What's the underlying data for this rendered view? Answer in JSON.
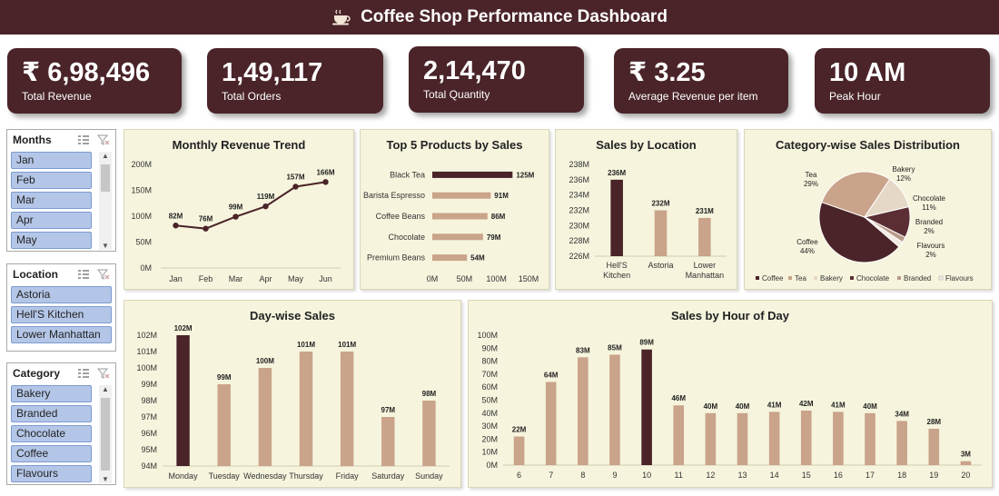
{
  "header": {
    "title": "Coffee Shop Performance Dashboard",
    "icon": "coffee-cup-icon"
  },
  "kpis": [
    {
      "value": "₹ 6,98,496",
      "label": "Total Revenue"
    },
    {
      "value": "1,49,117",
      "label": "Total Orders"
    },
    {
      "value": "2,14,470",
      "label": "Total Quantity"
    },
    {
      "value": "₹ 3.25",
      "label": "Average Revenue per item"
    },
    {
      "value": "10 AM",
      "label": "Peak Hour"
    }
  ],
  "slicers": {
    "months": {
      "title": "Months",
      "items": [
        "Jan",
        "Feb",
        "Mar",
        "Apr",
        "May"
      ]
    },
    "location": {
      "title": "Location",
      "items": [
        "Astoria",
        "Hell'S Kitchen",
        "Lower Manhattan"
      ]
    },
    "category": {
      "title": "Category",
      "items": [
        "Bakery",
        "Branded",
        "Chocolate",
        "Coffee",
        "Flavours"
      ]
    }
  },
  "colors": {
    "header": "#4a2429",
    "bar": "#c9a38a",
    "highlight": "#4a2429",
    "panel": "#f6f4dd",
    "slicer_item": "#b4c6e7"
  },
  "chart_data": [
    {
      "id": "monthly",
      "type": "line",
      "title": "Monthly Revenue Trend",
      "categories": [
        "Jan",
        "Feb",
        "Mar",
        "Apr",
        "May",
        "Jun"
      ],
      "values": [
        82,
        76,
        99,
        119,
        157,
        166
      ],
      "data_labels": [
        "82M",
        "76M",
        "99M",
        "119M",
        "157M",
        "166M"
      ],
      "yticks": [
        "0M",
        "50M",
        "100M",
        "150M",
        "200M"
      ],
      "ylim": [
        0,
        200
      ]
    },
    {
      "id": "top5",
      "type": "bar",
      "orientation": "horizontal",
      "title": "Top 5 Products by Sales",
      "categories": [
        "Black Tea",
        "Barista Espresso",
        "Coffee Beans",
        "Chocolate",
        "Premium Beans"
      ],
      "values": [
        125,
        91,
        86,
        79,
        54
      ],
      "data_labels": [
        "125M",
        "91M",
        "86M",
        "79M",
        "54M"
      ],
      "xticks": [
        "0M",
        "50M",
        "100M",
        "150M"
      ],
      "xlim": [
        0,
        150
      ]
    },
    {
      "id": "location",
      "type": "bar",
      "title": "Sales by Location",
      "categories": [
        "Hell'S Kitchen",
        "Astoria",
        "Lower Manhattan"
      ],
      "values": [
        236,
        232,
        231
      ],
      "data_labels": [
        "236M",
        "232M",
        "231M"
      ],
      "yticks": [
        "226M",
        "228M",
        "230M",
        "232M",
        "234M",
        "236M",
        "238M"
      ],
      "ylim": [
        226,
        238
      ]
    },
    {
      "id": "category",
      "type": "pie",
      "title": "Category-wise Sales Distribution",
      "categories": [
        "Coffee",
        "Tea",
        "Bakery",
        "Chocolate",
        "Branded",
        "Flavours"
      ],
      "values": [
        44,
        29,
        12,
        11,
        2,
        2
      ],
      "data_labels": [
        "44%",
        "29%",
        "12%",
        "11%",
        "2%",
        "2%"
      ],
      "colors": [
        "#4a2429",
        "#c9a38a",
        "#e6d8c6",
        "#5a2e33",
        "#b89a88",
        "#f2ebe1"
      ],
      "legend": "bottom"
    },
    {
      "id": "dayWise",
      "type": "bar",
      "title": "Day-wise Sales",
      "categories": [
        "Monday",
        "Tuesday",
        "Wednesday",
        "Thursday",
        "Friday",
        "Saturday",
        "Sunday"
      ],
      "values": [
        102,
        99,
        100,
        101,
        101,
        97,
        98
      ],
      "data_labels": [
        "102M",
        "99M",
        "100M",
        "101M",
        "101M",
        "97M",
        "98M"
      ],
      "yticks": [
        "94M",
        "95M",
        "96M",
        "97M",
        "98M",
        "99M",
        "100M",
        "101M",
        "102M"
      ],
      "ylim": [
        94,
        102
      ]
    },
    {
      "id": "hourly",
      "type": "bar",
      "title": "Sales by Hour of Day",
      "categories": [
        "6",
        "7",
        "8",
        "9",
        "10",
        "11",
        "12",
        "13",
        "14",
        "15",
        "16",
        "17",
        "18",
        "19",
        "20"
      ],
      "values": [
        22,
        64,
        83,
        85,
        89,
        46,
        40,
        40,
        41,
        42,
        41,
        40,
        34,
        28,
        3
      ],
      "data_labels": [
        "22M",
        "64M",
        "83M",
        "85M",
        "89M",
        "46M",
        "40M",
        "40M",
        "41M",
        "42M",
        "41M",
        "40M",
        "34M",
        "28M",
        "3M"
      ],
      "yticks": [
        "0M",
        "10M",
        "20M",
        "30M",
        "40M",
        "50M",
        "60M",
        "70M",
        "80M",
        "90M",
        "100M"
      ],
      "ylim": [
        0,
        100
      ]
    }
  ]
}
